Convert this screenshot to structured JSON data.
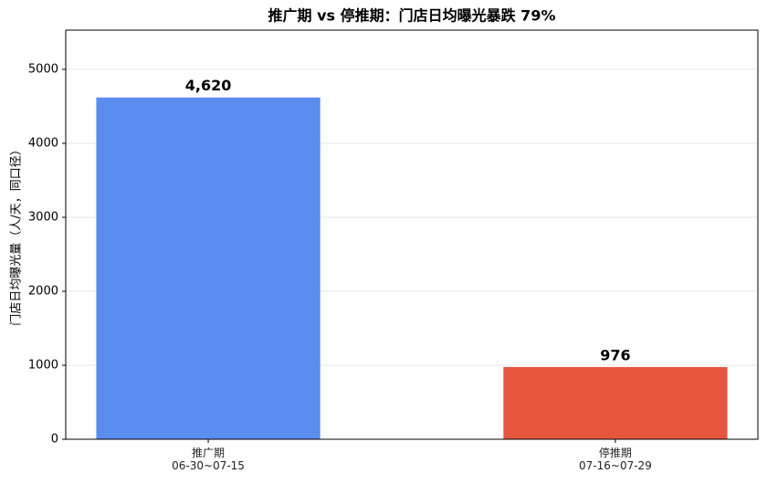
{
  "chart_data": {
    "type": "bar",
    "title": "推广期 vs 停推期：门店日均曝光暴跌 79%",
    "y_label": "门店日均曝光量（人/天，同口径）",
    "categories": [
      "推广期\n06-30~07-15",
      "停推期\n07-16~07-29"
    ],
    "values": [
      4620,
      976
    ],
    "value_labels": [
      "4,620",
      "976"
    ],
    "colors": [
      "#5b8def",
      "#e8553f"
    ],
    "ylim": [
      0,
      5530
    ],
    "yticks": [
      0,
      1000,
      2000,
      3000,
      4000,
      5000
    ],
    "grid": true
  }
}
